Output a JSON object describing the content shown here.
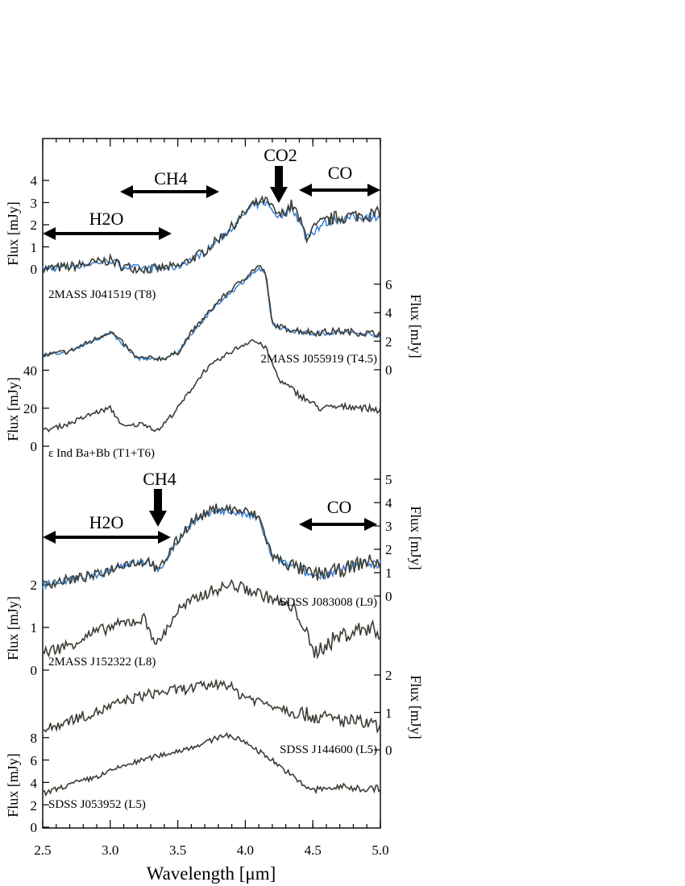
{
  "chart_data": {
    "type": "line",
    "xlabel": "Wavelength [μm]",
    "xlim": [
      2.5,
      5.0
    ],
    "xticks": [
      "2.5",
      "3.0",
      "3.5",
      "4.0",
      "4.5",
      "5.0"
    ],
    "colors": {
      "observed": "#3b3d34",
      "model": "#3a7fd5"
    },
    "y_axes": [
      {
        "id": "t8",
        "side": "left",
        "label": "Flux [mJy]",
        "ticks": [
          "0",
          "1",
          "2",
          "3",
          "4"
        ]
      },
      {
        "id": "t45",
        "side": "right",
        "label": "Flux [mJy]",
        "ticks": [
          "0",
          "2",
          "4",
          "6"
        ]
      },
      {
        "id": "eps",
        "side": "left",
        "label": "Flux [mJy]",
        "ticks": [
          "0",
          "20",
          "40"
        ]
      },
      {
        "id": "l9",
        "side": "right",
        "label": "Flux [mJy]",
        "ticks": [
          "0",
          "1",
          "2",
          "3",
          "4",
          "5"
        ]
      },
      {
        "id": "l8",
        "side": "left",
        "label": "Flux [mJy]",
        "ticks": [
          "0",
          "1",
          "2"
        ]
      },
      {
        "id": "l5a",
        "side": "right",
        "label": "Flux [mJy]",
        "ticks": [
          "0",
          "1",
          "2"
        ]
      },
      {
        "id": "l5b",
        "side": "left",
        "label": "Flux [mJy]",
        "ticks": [
          "0",
          "2",
          "4",
          "6",
          "8"
        ]
      }
    ],
    "series": [
      {
        "id": "t8",
        "name": "2MASS J041519 (T8)",
        "x": [
          2.5,
          2.7,
          2.9,
          3.0,
          3.1,
          3.3,
          3.5,
          3.7,
          3.9,
          4.05,
          4.15,
          4.25,
          4.35,
          4.45,
          4.55,
          4.65,
          4.8,
          5.0
        ],
        "y": [
          0.0,
          0.1,
          0.3,
          0.4,
          0.1,
          0.0,
          0.1,
          0.8,
          1.9,
          2.9,
          3.1,
          2.4,
          2.9,
          1.5,
          2.0,
          2.3,
          2.4,
          2.5
        ],
        "model": true
      },
      {
        "id": "t45",
        "name": "2MASS J055919 (T4.5)",
        "x": [
          2.5,
          2.7,
          2.9,
          3.0,
          3.1,
          3.2,
          3.4,
          3.5,
          3.6,
          3.8,
          4.0,
          4.1,
          4.15,
          4.2,
          4.3,
          4.5,
          4.7,
          5.0
        ],
        "y": [
          1.0,
          1.3,
          2.2,
          2.7,
          1.8,
          0.8,
          0.8,
          1.2,
          2.6,
          4.8,
          6.5,
          7.3,
          6.8,
          3.2,
          2.9,
          2.6,
          2.7,
          2.5
        ],
        "model": true
      },
      {
        "id": "eps",
        "name": "ε Ind Ba+Bb (T1+T6)",
        "x": [
          2.5,
          2.7,
          2.9,
          3.0,
          3.1,
          3.25,
          3.35,
          3.5,
          3.7,
          3.9,
          4.05,
          4.15,
          4.25,
          4.4,
          4.55,
          4.8,
          5.0
        ],
        "y": [
          8,
          12,
          18,
          20,
          10,
          12,
          8,
          20,
          40,
          50,
          56,
          52,
          35,
          27,
          20,
          21,
          19
        ],
        "model": false
      },
      {
        "id": "l9",
        "name": "SDSS J083008 (L9)",
        "x": [
          2.5,
          2.7,
          2.9,
          3.1,
          3.3,
          3.35,
          3.45,
          3.6,
          3.8,
          4.0,
          4.1,
          4.2,
          4.35,
          4.5,
          4.7,
          4.9,
          5.0
        ],
        "y": [
          0.5,
          0.7,
          0.9,
          1.4,
          1.5,
          1.0,
          2.0,
          3.2,
          3.8,
          3.6,
          3.4,
          1.7,
          1.3,
          0.9,
          1.1,
          1.5,
          1.4
        ],
        "model": true
      },
      {
        "id": "l8",
        "name": "2MASS J152322 (L8)",
        "x": [
          2.5,
          2.7,
          2.9,
          3.1,
          3.25,
          3.35,
          3.5,
          3.7,
          3.9,
          4.1,
          4.25,
          4.4,
          4.5,
          4.7,
          4.9,
          5.0
        ],
        "y": [
          0.4,
          0.6,
          0.9,
          1.1,
          1.2,
          0.6,
          1.4,
          1.8,
          2.0,
          1.8,
          1.6,
          1.3,
          0.4,
          0.8,
          1.0,
          0.9
        ],
        "model": false
      },
      {
        "id": "l5a",
        "name": "SDSS J144600 (L5)",
        "x": [
          2.5,
          2.7,
          2.9,
          3.1,
          3.3,
          3.5,
          3.7,
          3.85,
          3.95,
          4.1,
          4.3,
          4.5,
          4.7,
          4.9,
          5.0
        ],
        "y": [
          0.5,
          0.8,
          1.0,
          1.3,
          1.5,
          1.6,
          1.7,
          1.8,
          1.5,
          1.3,
          1.1,
          0.9,
          0.8,
          0.7,
          0.6
        ],
        "model": false
      },
      {
        "id": "l5b",
        "name": "SDSS J053952 (L5)",
        "x": [
          2.5,
          2.7,
          2.9,
          3.1,
          3.3,
          3.5,
          3.7,
          3.85,
          4.0,
          4.2,
          4.4,
          4.5,
          4.7,
          4.9,
          5.0
        ],
        "y": [
          3.0,
          3.8,
          4.5,
          5.5,
          6.2,
          6.8,
          7.5,
          8.3,
          7.6,
          6.0,
          4.0,
          3.3,
          3.6,
          3.4,
          3.5
        ],
        "model": false
      }
    ],
    "annotations": {
      "top": {
        "h2o": "H2O",
        "ch4": "CH4",
        "co2": "CO2",
        "co": "CO"
      },
      "bottom": {
        "h2o": "H2O",
        "ch4": "CH4",
        "co": "CO"
      }
    }
  }
}
